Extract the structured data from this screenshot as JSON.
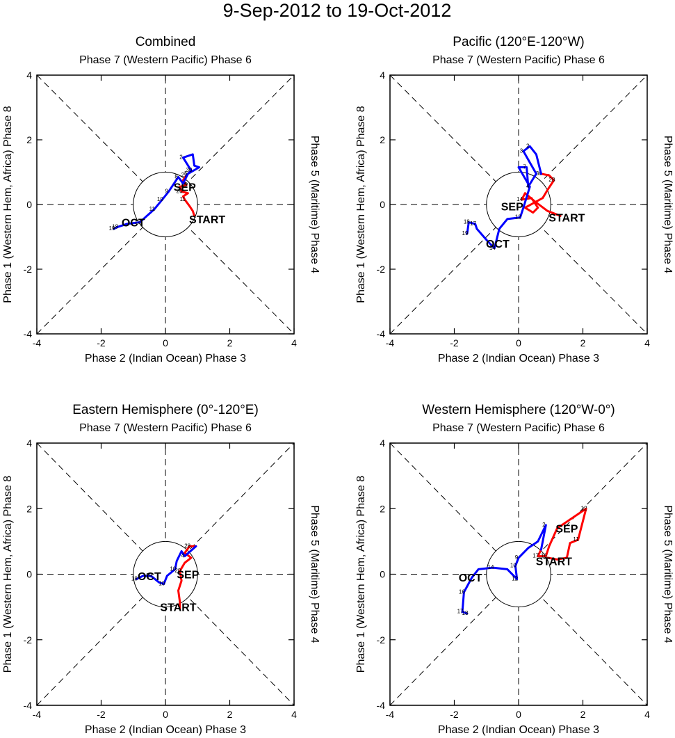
{
  "title": "9-Sep-2012 to 19-Oct-2012",
  "chart_data": [
    {
      "type": "line",
      "title": "Combined",
      "label_top": "Phase 7 (Western Pacific) Phase 6",
      "label_bottom": "Phase 2 (Indian Ocean) Phase 3",
      "label_left": "Phase 1 (Western Hem, Africa) Phase 8",
      "label_right": "Phase 5 (Maritime) Phase 4",
      "xlim": [
        -4,
        4
      ],
      "ylim": [
        -4,
        4
      ],
      "xticks": [
        -4,
        -2,
        0,
        2,
        4
      ],
      "yticks": [
        -4,
        -2,
        0,
        2,
        4
      ],
      "start_label": "START",
      "start_xy": [
        1.3,
        -0.45
      ],
      "series": [
        {
          "name": "SEP",
          "color": "#ff0000",
          "label_xy": [
            0.6,
            0.55
          ],
          "points": [
            [
              0.9,
              -0.35,
              ""
            ],
            [
              0.85,
              -0.2,
              ""
            ],
            [
              0.75,
              -0.05,
              ""
            ],
            [
              0.6,
              0.15,
              "11"
            ],
            [
              0.55,
              0.25,
              ""
            ],
            [
              0.7,
              0.35,
              ""
            ],
            [
              0.5,
              0.4,
              "20"
            ],
            [
              0.45,
              0.55,
              ""
            ],
            [
              0.65,
              0.6,
              "25"
            ],
            [
              0.55,
              0.75,
              ""
            ],
            [
              0.65,
              0.9,
              "29"
            ]
          ]
        },
        {
          "name": "OCT",
          "color": "#0000ff",
          "label_xy": [
            -1.0,
            -0.55
          ],
          "points": [
            [
              0.65,
              0.9,
              ""
            ],
            [
              0.8,
              1.05,
              "30"
            ],
            [
              0.55,
              1.45,
              "2"
            ],
            [
              0.85,
              1.55,
              ""
            ],
            [
              0.9,
              1.2,
              ""
            ],
            [
              1.05,
              1.15,
              ""
            ],
            [
              0.7,
              0.95,
              "5"
            ],
            [
              0.55,
              0.65,
              ""
            ],
            [
              0.4,
              0.85,
              "8"
            ],
            [
              0.1,
              0.4,
              "9"
            ],
            [
              -0.1,
              0.15,
              "10"
            ],
            [
              -0.35,
              -0.15,
              "11"
            ],
            [
              -0.8,
              -0.55,
              "12"
            ],
            [
              -1.2,
              -0.6,
              ""
            ],
            [
              -1.5,
              -0.7,
              "18"
            ],
            [
              -1.6,
              -0.75,
              "19"
            ]
          ]
        }
      ]
    },
    {
      "type": "line",
      "title": "Pacific (120°E-120°W)",
      "label_top": "Phase 7 (Western Pacific) Phase 6",
      "label_bottom": "Phase 2 (Indian Ocean) Phase 3",
      "label_left": "Phase 1 (Western Hem, Africa) Phase 8",
      "label_right": "Phase 5 (Maritime) Phase 4",
      "xlim": [
        -4,
        4
      ],
      "ylim": [
        -4,
        4
      ],
      "xticks": [
        -4,
        -2,
        0,
        2,
        4
      ],
      "yticks": [
        -4,
        -2,
        0,
        2,
        4
      ],
      "start_label": "START",
      "start_xy": [
        1.5,
        -0.4
      ],
      "series": [
        {
          "name": "SEP",
          "color": "#ff0000",
          "label_xy": [
            -0.2,
            -0.05
          ],
          "points": [
            [
              1.3,
              -0.35,
              ""
            ],
            [
              0.9,
              -0.2,
              ""
            ],
            [
              0.5,
              0.1,
              ""
            ],
            [
              0.2,
              0.35,
              ""
            ],
            [
              0.1,
              0.15,
              "14"
            ],
            [
              0.4,
              0.2,
              ""
            ],
            [
              0.6,
              -0.1,
              ""
            ],
            [
              0.45,
              -0.25,
              ""
            ],
            [
              0.2,
              -0.1,
              ""
            ],
            [
              0.75,
              0.2,
              ""
            ],
            [
              0.9,
              0.45,
              ""
            ],
            [
              1.1,
              0.75,
              "28"
            ],
            [
              0.95,
              0.9,
              ""
            ],
            [
              0.7,
              0.95,
              "30"
            ]
          ]
        },
        {
          "name": "OCT",
          "color": "#0000ff",
          "label_xy": [
            -0.65,
            -1.2
          ],
          "points": [
            [
              0.7,
              0.95,
              ""
            ],
            [
              0.55,
              1.55,
              ""
            ],
            [
              0.35,
              1.8,
              "2"
            ],
            [
              0.15,
              1.65,
              "3"
            ],
            [
              0.55,
              0.95,
              ""
            ],
            [
              0.3,
              0.55,
              ""
            ],
            [
              0.25,
              1.15,
              "7"
            ],
            [
              0.0,
              1.15,
              ""
            ],
            [
              0.35,
              0.55,
              "4"
            ],
            [
              0.15,
              -0.1,
              ""
            ],
            [
              0.05,
              -0.4,
              "12"
            ],
            [
              -0.35,
              -0.45,
              ""
            ],
            [
              -0.6,
              -0.75,
              ""
            ],
            [
              -0.75,
              -1.35,
              "14"
            ],
            [
              -0.95,
              -1.15,
              ""
            ],
            [
              -1.3,
              -0.75,
              ""
            ],
            [
              -1.35,
              -0.6,
              "17"
            ],
            [
              -1.55,
              -0.55,
              "18"
            ],
            [
              -1.6,
              -0.9,
              "19"
            ]
          ]
        }
      ]
    },
    {
      "type": "line",
      "title": "Eastern Hemisphere (0°-120°E)",
      "label_top": "Phase 7 (Western Pacific) Phase 6",
      "label_bottom": "Phase 2 (Indian Ocean) Phase 3",
      "label_left": "Phase 1 (Western Hem, Africa) Phase 8",
      "label_right": "Phase 5 (Maritime) Phase 4",
      "xlim": [
        -4,
        4
      ],
      "ylim": [
        -4,
        4
      ],
      "xticks": [
        -4,
        -2,
        0,
        2,
        4
      ],
      "yticks": [
        -4,
        -2,
        0,
        2,
        4
      ],
      "start_label": "START",
      "start_xy": [
        0.4,
        -1.0
      ],
      "series": [
        {
          "name": "SEP",
          "color": "#ff0000",
          "label_xy": [
            0.7,
            0.0
          ],
          "points": [
            [
              0.45,
              -1.05,
              ""
            ],
            [
              0.45,
              -0.85,
              ""
            ],
            [
              0.4,
              -0.5,
              ""
            ],
            [
              0.5,
              -0.2,
              ""
            ],
            [
              0.45,
              0.1,
              "20"
            ],
            [
              0.6,
              0.35,
              ""
            ],
            [
              0.8,
              0.5,
              ""
            ],
            [
              0.6,
              0.65,
              ""
            ],
            [
              0.75,
              0.85,
              "28"
            ],
            [
              0.95,
              0.85,
              ""
            ]
          ]
        },
        {
          "name": "OCT",
          "color": "#0000ff",
          "label_xy": [
            -0.5,
            -0.05
          ],
          "points": [
            [
              0.95,
              0.85,
              ""
            ],
            [
              0.6,
              0.55,
              "4"
            ],
            [
              0.5,
              0.7,
              ""
            ],
            [
              0.35,
              0.4,
              ""
            ],
            [
              0.3,
              0.15,
              "10"
            ],
            [
              0.05,
              -0.05,
              ""
            ],
            [
              -0.05,
              -0.3,
              "10"
            ],
            [
              -0.2,
              -0.25,
              ""
            ],
            [
              -0.45,
              -0.05,
              "19"
            ],
            [
              -0.7,
              -0.05,
              ""
            ],
            [
              -0.9,
              -0.15,
              "18"
            ]
          ]
        }
      ]
    },
    {
      "type": "line",
      "title": "Western Hemisphere (120°W-0°)",
      "label_top": "Phase 7 (Western Pacific) Phase 6",
      "label_bottom": "Phase 2 (Indian Ocean) Phase 3",
      "label_left": "Phase 1 (Western Hem, Africa) Phase 8",
      "label_right": "Phase 5 (Maritime) Phase 4",
      "xlim": [
        -4,
        4
      ],
      "ylim": [
        -4,
        4
      ],
      "xticks": [
        -4,
        -2,
        0,
        2,
        4
      ],
      "yticks": [
        -4,
        -2,
        0,
        2,
        4
      ],
      "start_label": "START",
      "start_xy": [
        1.1,
        0.4
      ],
      "series": [
        {
          "name": "SEP",
          "color": "#ff0000",
          "label_xy": [
            1.5,
            1.4
          ],
          "points": [
            [
              0.9,
              0.5,
              ""
            ],
            [
              1.2,
              0.45,
              ""
            ],
            [
              1.5,
              0.5,
              ""
            ],
            [
              1.6,
              0.95,
              ""
            ],
            [
              1.85,
              1.05,
              "11"
            ],
            [
              2.1,
              2.0,
              "12"
            ],
            [
              1.2,
              1.4,
              ""
            ],
            [
              0.95,
              0.85,
              ""
            ],
            [
              0.85,
              0.55,
              "16"
            ],
            [
              0.6,
              0.55,
              "17"
            ],
            [
              0.7,
              0.75,
              ""
            ]
          ]
        },
        {
          "name": "OCT",
          "color": "#0000ff",
          "label_xy": [
            -1.5,
            -0.1
          ],
          "points": [
            [
              0.7,
              0.75,
              ""
            ],
            [
              0.85,
              1.5,
              "2"
            ],
            [
              0.6,
              1.0,
              ""
            ],
            [
              0.3,
              0.8,
              ""
            ],
            [
              0.0,
              0.5,
              "9"
            ],
            [
              -0.1,
              0.25,
              "10"
            ],
            [
              -0.05,
              -0.15,
              "12"
            ],
            [
              -0.35,
              0.15,
              ""
            ],
            [
              -0.8,
              0.2,
              "14"
            ],
            [
              -1.25,
              0.15,
              ""
            ],
            [
              -1.45,
              -0.1,
              ""
            ],
            [
              -1.7,
              -0.55,
              "16"
            ],
            [
              -1.75,
              -1.15,
              "17"
            ],
            [
              -1.6,
              -1.2,
              "18"
            ]
          ]
        }
      ]
    }
  ]
}
